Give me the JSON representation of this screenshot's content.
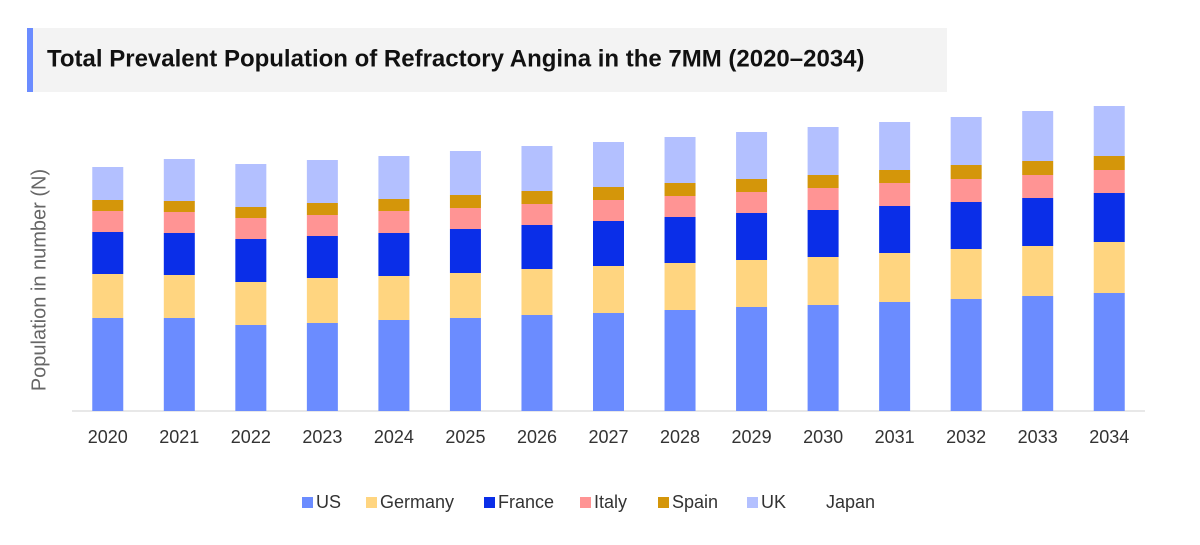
{
  "chart_data": {
    "type": "stacked-bar",
    "title": "Total Prevalent Population of Refractory Angina in the 7MM (2020–2034)",
    "y_label": "Population in number (N)",
    "categories": [
      "2020",
      "2021",
      "2022",
      "2023",
      "2024",
      "2025",
      "2026",
      "2027",
      "2028",
      "2029",
      "2030",
      "2031",
      "2032",
      "2033",
      "2034"
    ],
    "ylim": [
      0,
      310
    ],
    "series": [
      {
        "name": "US",
        "color": "#6b8cff",
        "values": [
          93,
          93,
          86,
          88,
          91,
          93,
          96,
          98,
          101,
          104,
          106,
          109,
          112,
          115,
          118
        ]
      },
      {
        "name": "Germany",
        "color": "#ffd580",
        "values": [
          44,
          43,
          43,
          45,
          44,
          45,
          46,
          47,
          47,
          47,
          48,
          49,
          50,
          50,
          51
        ]
      },
      {
        "name": "France",
        "color": "#0a2ee8",
        "values": [
          42,
          42,
          43,
          42,
          43,
          44,
          44,
          45,
          46,
          47,
          47,
          47,
          47,
          48,
          49
        ]
      },
      {
        "name": "Italy",
        "color": "#ff9494",
        "values": [
          21,
          21,
          21,
          21,
          22,
          21,
          21,
          21,
          21,
          21,
          22,
          23,
          23,
          23,
          23
        ]
      },
      {
        "name": "Spain",
        "color": "#d4960a",
        "values": [
          11,
          11,
          11,
          12,
          12,
          13,
          13,
          13,
          13,
          13,
          13,
          13,
          14,
          14,
          14
        ]
      },
      {
        "name": "UK",
        "color": "#b3c0ff",
        "values": [
          33,
          42,
          43,
          43,
          43,
          44,
          45,
          45,
          46,
          47,
          48,
          48,
          48,
          50,
          50
        ]
      },
      {
        "name": "Japan",
        "color": "#ffffff",
        "values": [
          0,
          0,
          0,
          0,
          0,
          0,
          0,
          0,
          0,
          0,
          0,
          0,
          0,
          0,
          0
        ]
      }
    ]
  }
}
